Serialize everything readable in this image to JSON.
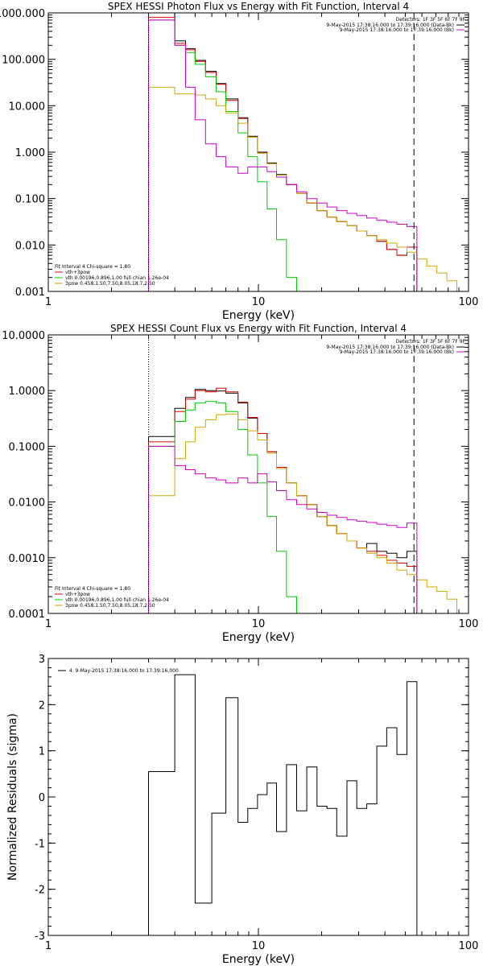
{
  "chart_data": [
    {
      "type": "line",
      "title": "SPEX HESSI Photon Flux vs Energy with Fit Function, Interval 4",
      "xlabel": "Energy (keV)",
      "ylabel": "",
      "xscale": "log",
      "yscale": "log",
      "xlim": [
        1,
        100
      ],
      "ylim": [
        0.001,
        1000
      ],
      "xticks": [
        {
          "value": 1,
          "label": "1"
        },
        {
          "value": 10,
          "label": "10"
        },
        {
          "value": 100,
          "label": "100"
        }
      ],
      "yticks": [
        {
          "value": 1000,
          "label": "1000.000"
        },
        {
          "value": 100,
          "label": "100.000"
        },
        {
          "value": 10,
          "label": "10.000"
        },
        {
          "value": 1,
          "label": "1.000"
        },
        {
          "value": 0.1,
          "label": "0.100"
        },
        {
          "value": 0.01,
          "label": "0.010"
        },
        {
          "value": 0.001,
          "label": "0.001"
        }
      ],
      "detectors_label": "Detectors: 1F 3F 5F 6F 7F 9F",
      "legend_top": [
        {
          "text": "9-May-2015 17:38:16.000 to 17:39:16.000 (Data-Bk)",
          "color": "#000000"
        },
        {
          "text": "9-May-2015 17:38:16.000 to 17:39:16.000 (Bk)",
          "color": "#cc00cc"
        }
      ],
      "fit_header": "Fit Interval 4   Chi-square = 1.80",
      "legend_bottom": [
        {
          "text": "vth+3pow",
          "color": "#dd0000"
        },
        {
          "text": "vth 0.00196,0.896,1.00  full chian 1.26e-04",
          "color": "#00cc00"
        },
        {
          "text": "3pow 0.458,1.50,7.50,8.05,18.7,2.50",
          "color": "#ccaa00"
        }
      ],
      "vlines": [
        {
          "x": 3,
          "style": "dotted",
          "color": "#000000"
        },
        {
          "x": 55,
          "style": "dashed",
          "color": "#000000"
        }
      ],
      "series": [
        {
          "color": "#000000",
          "edges": [
            3,
            3.5,
            4,
            4.5,
            5,
            5.6,
            6.3,
            7,
            8,
            8.9,
            9.9,
            11,
            12.2,
            13.6,
            15.2,
            17,
            19,
            21.2,
            23.6,
            26.4,
            29.4,
            32.8,
            36.6,
            40.8,
            45.6,
            50.9,
            56.8
          ],
          "values": [
            1000,
            1000,
            250,
            170,
            95,
            55,
            30,
            14,
            5.5,
            2.2,
            1.0,
            0.58,
            0.33,
            0.2,
            0.13,
            0.08,
            0.055,
            0.04,
            0.032,
            0.026,
            0.02,
            0.016,
            0.012,
            0.008,
            0.006,
            0.009
          ]
        },
        {
          "color": "#dd0000",
          "edges": [
            3,
            3.5,
            4,
            4.5,
            5,
            5.6,
            6.3,
            7,
            8,
            8.9,
            9.9,
            11,
            12.2,
            13.6,
            15.2,
            17,
            19,
            21.2,
            23.6,
            26.4,
            29.4,
            32.8,
            36.6,
            40.8,
            45.6,
            50.9,
            56.8
          ],
          "values": [
            800,
            800,
            220,
            160,
            90,
            52,
            29,
            13,
            5.3,
            2.1,
            0.95,
            0.56,
            0.32,
            0.2,
            0.13,
            0.08,
            0.055,
            0.04,
            0.032,
            0.026,
            0.02,
            0.016,
            0.012,
            0.008,
            0.006,
            0.009
          ]
        },
        {
          "color": "#00cc00",
          "edges": [
            3,
            3.5,
            4,
            4.5,
            5,
            5.6,
            6.3,
            7,
            8,
            8.9,
            9.9,
            11,
            12.2,
            13.6,
            15.2
          ],
          "values": [
            700,
            700,
            200,
            140,
            78,
            42,
            20,
            7.5,
            2.6,
            0.8,
            0.23,
            0.06,
            0.013,
            0.002
          ]
        },
        {
          "color": "#ccaa00",
          "edges": [
            3,
            3.5,
            4,
            4.5,
            5,
            5.6,
            6.3,
            7,
            8,
            8.9,
            9.9,
            11,
            12.2,
            13.6,
            15.2,
            17,
            19,
            21.2,
            23.6,
            26.4,
            29.4,
            32.8,
            36.6,
            40.8,
            45.6,
            50.9,
            56.8,
            63.4,
            70.7,
            78.9,
            88
          ],
          "values": [
            25,
            25,
            18,
            18,
            17,
            14,
            10,
            7,
            4.2,
            2.1,
            0.95,
            0.56,
            0.32,
            0.2,
            0.13,
            0.08,
            0.055,
            0.04,
            0.032,
            0.026,
            0.02,
            0.016,
            0.013,
            0.011,
            0.009,
            0.007,
            0.005,
            0.0035,
            0.0025,
            0.0017
          ]
        },
        {
          "color": "#cc00cc",
          "edges": [
            3,
            3.5,
            4,
            4.5,
            5,
            5.6,
            6.3,
            7,
            8,
            8.9,
            9.9,
            11,
            12.2,
            13.6,
            15.2,
            17,
            19,
            21.2,
            23.6,
            26.4,
            29.4,
            32.8,
            36.6,
            40.8,
            45.6,
            50.9,
            56.8
          ],
          "values": [
            700,
            700,
            200,
            25,
            5,
            1.5,
            0.8,
            0.48,
            0.35,
            0.48,
            0.48,
            0.38,
            0.29,
            0.2,
            0.14,
            0.1,
            0.08,
            0.066,
            0.055,
            0.048,
            0.043,
            0.038,
            0.034,
            0.031,
            0.028,
            0.025
          ]
        }
      ]
    },
    {
      "type": "line",
      "title": "SPEX HESSI Count Flux vs Energy with Fit Function, Interval 4",
      "xlabel": "Energy (keV)",
      "ylabel": "",
      "xscale": "log",
      "yscale": "log",
      "xlim": [
        1,
        100
      ],
      "ylim": [
        0.0001,
        10
      ],
      "xticks": [
        {
          "value": 1,
          "label": "1"
        },
        {
          "value": 10,
          "label": "10"
        },
        {
          "value": 100,
          "label": "100"
        }
      ],
      "yticks": [
        {
          "value": 10,
          "label": "10.0000"
        },
        {
          "value": 1,
          "label": "1.0000"
        },
        {
          "value": 0.1,
          "label": "0.1000"
        },
        {
          "value": 0.01,
          "label": "0.0100"
        },
        {
          "value": 0.001,
          "label": "0.0010"
        },
        {
          "value": 0.0001,
          "label": "0.0001"
        }
      ],
      "detectors_label": "Detectors: 1F 3F 5F 6F 7F 9F",
      "legend_top": [
        {
          "text": "9-May-2015 17:38:16.000 to 17:39:16.000 (Data-Bk)",
          "color": "#000000"
        },
        {
          "text": "9-May-2015 17:38:16.000 to 17:39:16.000 (Bk)",
          "color": "#cc00cc"
        }
      ],
      "fit_header": "Fit Interval 4   Chi-square = 1.80",
      "legend_bottom": [
        {
          "text": "vth+3pow",
          "color": "#dd0000"
        },
        {
          "text": "vth 0.00196,0.896,1.00  full chian 1.26e-04",
          "color": "#00cc00"
        },
        {
          "text": "3pow 0.458,1.50,7.50,8.05,18.7,2.50",
          "color": "#ccaa00"
        }
      ],
      "vlines": [
        {
          "x": 3,
          "style": "dotted",
          "color": "#000000"
        },
        {
          "x": 55,
          "style": "dashed",
          "color": "#000000"
        }
      ],
      "series": [
        {
          "color": "#000000",
          "edges": [
            3,
            3.5,
            4,
            4.5,
            5,
            5.6,
            6.3,
            7,
            8,
            8.9,
            9.9,
            11,
            12.2,
            13.6,
            15.2,
            17,
            19,
            21.2,
            23.6,
            26.4,
            29.4,
            32.8,
            36.6,
            40.8,
            45.6,
            50.9,
            56.8
          ],
          "values": [
            0.15,
            0.15,
            0.48,
            0.75,
            1.05,
            1.0,
            0.98,
            0.9,
            0.6,
            0.32,
            0.17,
            0.08,
            0.042,
            0.022,
            0.013,
            0.009,
            0.0055,
            0.0038,
            0.0027,
            0.002,
            0.0015,
            0.0018,
            0.0013,
            0.0012,
            0.001,
            0.0013
          ]
        },
        {
          "color": "#dd0000",
          "edges": [
            3,
            3.5,
            4,
            4.5,
            5,
            5.6,
            6.3,
            7,
            8,
            8.9,
            9.9,
            11,
            12.2,
            13.6,
            15.2,
            17,
            19,
            21.2,
            23.6,
            26.4,
            29.4,
            32.8,
            36.6,
            40.8,
            45.6,
            50.9,
            56.8
          ],
          "values": [
            0.12,
            0.12,
            0.42,
            0.7,
            1.0,
            0.95,
            1.1,
            0.95,
            0.62,
            0.33,
            0.17,
            0.08,
            0.042,
            0.022,
            0.013,
            0.009,
            0.0055,
            0.0038,
            0.0027,
            0.002,
            0.0015,
            0.0013,
            0.0011,
            0.0009,
            0.0008,
            0.0007
          ]
        },
        {
          "color": "#00cc00",
          "edges": [
            3,
            3.5,
            4,
            4.5,
            5,
            5.6,
            6.3,
            7,
            8,
            8.9,
            9.9,
            11,
            12.2,
            13.6,
            15.2
          ],
          "values": [
            0.1,
            0.1,
            0.28,
            0.45,
            0.6,
            0.64,
            0.6,
            0.42,
            0.2,
            0.07,
            0.022,
            0.0055,
            0.0013,
            0.0002
          ]
        },
        {
          "color": "#ccaa00",
          "edges": [
            3,
            3.5,
            4,
            4.5,
            5,
            5.6,
            6.3,
            7,
            8,
            8.9,
            9.9,
            11,
            12.2,
            13.6,
            15.2,
            17,
            19,
            21.2,
            23.6,
            26.4,
            29.4,
            32.8,
            36.6,
            40.8,
            45.6,
            50.9,
            56.8,
            63.4,
            70.7,
            78.9,
            88
          ],
          "values": [
            0.013,
            0.013,
            0.06,
            0.12,
            0.22,
            0.3,
            0.37,
            0.38,
            0.3,
            0.19,
            0.13,
            0.075,
            0.04,
            0.022,
            0.013,
            0.009,
            0.0055,
            0.0038,
            0.0027,
            0.002,
            0.0015,
            0.0012,
            0.001,
            0.0008,
            0.0006,
            0.0005,
            0.0004,
            0.0003,
            0.00025,
            0.00018
          ]
        },
        {
          "color": "#cc00cc",
          "edges": [
            3,
            3.5,
            4,
            4.5,
            5,
            5.6,
            6.3,
            7,
            8,
            8.9,
            9.9,
            11,
            12.2,
            13.6,
            15.2,
            17,
            19,
            21.2,
            23.6,
            26.4,
            29.4,
            32.8,
            36.6,
            40.8,
            45.6,
            50.9,
            56.8
          ],
          "values": [
            0.1,
            0.1,
            0.045,
            0.038,
            0.032,
            0.027,
            0.025,
            0.022,
            0.027,
            0.022,
            0.032,
            0.023,
            0.016,
            0.011,
            0.009,
            0.0075,
            0.0065,
            0.0058,
            0.0053,
            0.0048,
            0.0045,
            0.0043,
            0.004,
            0.0038,
            0.0035,
            0.0042
          ]
        }
      ]
    },
    {
      "type": "line",
      "title": "",
      "xlabel": "Energy (keV)",
      "ylabel": "Normalized Residuals (sigma)",
      "xscale": "log",
      "yscale": "linear",
      "xlim": [
        1,
        100
      ],
      "ylim": [
        -3,
        3
      ],
      "xticks": [
        {
          "value": 1,
          "label": "1"
        },
        {
          "value": 10,
          "label": "10"
        },
        {
          "value": 100,
          "label": "100"
        }
      ],
      "yticks": [
        {
          "value": 3,
          "label": "3"
        },
        {
          "value": 2,
          "label": "2"
        },
        {
          "value": 1,
          "label": "1"
        },
        {
          "value": 0,
          "label": "0"
        },
        {
          "value": -1,
          "label": "-1"
        },
        {
          "value": -2,
          "label": "-2"
        },
        {
          "value": -3,
          "label": "-3"
        }
      ],
      "legend_top": [
        {
          "text": "4. 9-May-2015 17:38:16.000 to 17:39:16.000",
          "color": "#000000"
        }
      ],
      "series": [
        {
          "color": "#000000",
          "edges": [
            3,
            4,
            5,
            6,
            7,
            8,
            8.9,
            9.9,
            11,
            12.2,
            13.6,
            15.2,
            17,
            19,
            21.2,
            23.6,
            26.4,
            29.4,
            32.8,
            36.6,
            40.8,
            45.6,
            50.9,
            56.8
          ],
          "values": [
            0.55,
            2.65,
            -2.3,
            -0.35,
            2.15,
            -0.55,
            -0.25,
            0.05,
            0.3,
            -0.75,
            0.7,
            -0.3,
            0.65,
            -0.2,
            -0.25,
            -0.85,
            0.35,
            -0.25,
            -0.15,
            1.1,
            1.5,
            0.92,
            2.5
          ]
        }
      ]
    }
  ]
}
